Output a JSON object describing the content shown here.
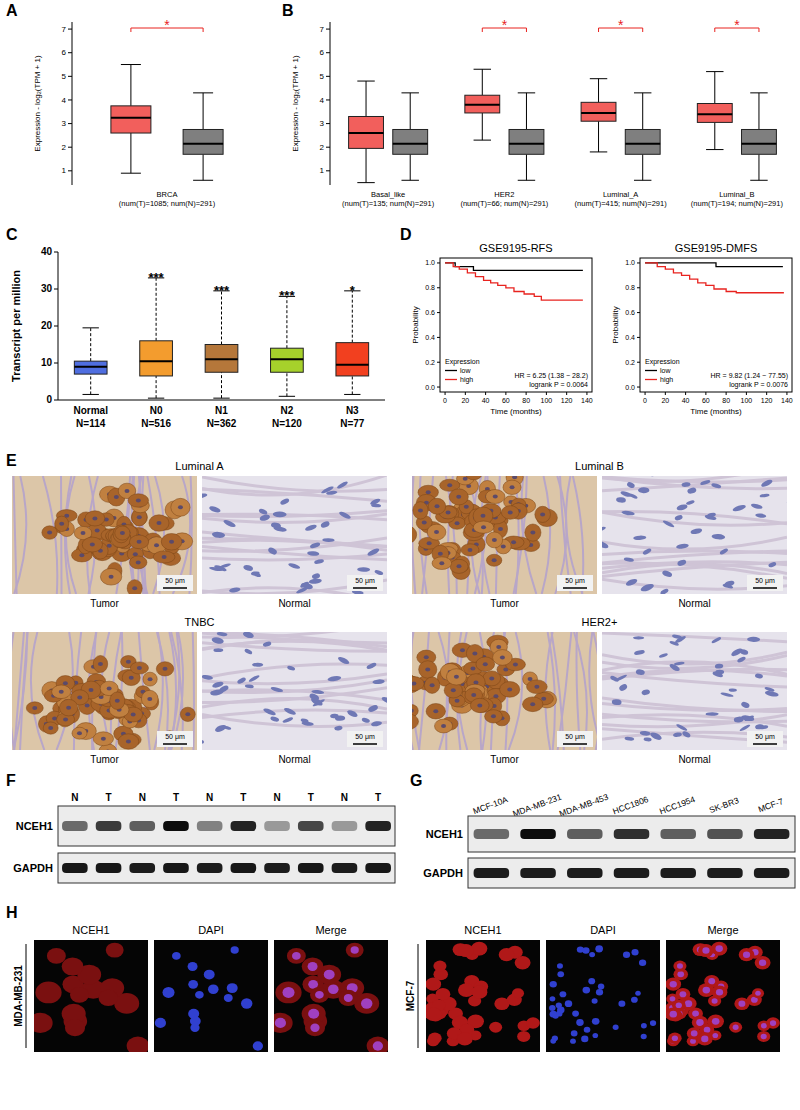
{
  "chart_data": [
    {
      "panel": "A",
      "type": "box",
      "ylabel": "Expression - log₂(TPM + 1)",
      "categories": [
        "BRCA (num(T)=1085; num(N)=291)"
      ],
      "series": [
        {
          "color": "#f25f5c",
          "min": [
            0.9
          ],
          "q1": [
            2.6
          ],
          "median": [
            3.25
          ],
          "q3": [
            3.75
          ],
          "max": [
            5.5
          ]
        },
        {
          "color": "#7f7f7f",
          "min": [
            0.6
          ],
          "q1": [
            1.7
          ],
          "median": [
            2.15
          ],
          "q3": [
            2.75
          ],
          "max": [
            4.3
          ]
        }
      ],
      "annotations": [
        "*"
      ],
      "ylim": [
        0.4,
        7.3
      ],
      "yticks": [
        1,
        2,
        3,
        4,
        5,
        6,
        7
      ]
    },
    {
      "panel": "B",
      "type": "box",
      "ylabel": "Expression - log₂(TPM + 1)",
      "categories": [
        "Basal_like (num(T)=135; num(N)=291)",
        "HER2 (num(T)=66; num(N)=291)",
        "Luminal_A (num(T)=415; num(N)=291)",
        "Luminal_B (num(T)=194; num(N)=291)"
      ],
      "series": [
        {
          "color": "#f25f5c",
          "min": [
            0.5,
            2.3,
            1.8,
            1.9
          ],
          "q1": [
            1.95,
            3.45,
            3.1,
            3.05
          ],
          "median": [
            2.6,
            3.8,
            3.45,
            3.4
          ],
          "q3": [
            3.3,
            4.2,
            3.9,
            3.85
          ],
          "max": [
            4.8,
            5.3,
            4.9,
            5.2
          ]
        },
        {
          "color": "#7f7f7f",
          "min": [
            0.6,
            0.6,
            0.6,
            0.6
          ],
          "q1": [
            1.7,
            1.7,
            1.7,
            1.7
          ],
          "median": [
            2.15,
            2.15,
            2.15,
            2.15
          ],
          "q3": [
            2.75,
            2.75,
            2.75,
            2.75
          ],
          "max": [
            4.3,
            4.3,
            4.3,
            4.3
          ]
        }
      ],
      "annotations": [
        null,
        "*",
        "*",
        "*"
      ],
      "ylim": [
        0.4,
        7.3
      ],
      "yticks": [
        1,
        2,
        3,
        4,
        5,
        6,
        7
      ]
    },
    {
      "panel": "C",
      "type": "box",
      "ylabel": "Transcript per million",
      "categories": [
        "Normal",
        "N0",
        "N1",
        "N2",
        "N3"
      ],
      "n_labels": [
        "N=114",
        "N=516",
        "N=362",
        "N=120",
        "N=77"
      ],
      "colors": [
        "#4f6ee0",
        "#f39c2e",
        "#b5773a",
        "#a6d12b",
        "#f2401f"
      ],
      "series": [
        {
          "min": [
            1.5,
            0.5,
            0.5,
            1,
            1.5
          ],
          "q1": [
            7,
            6.5,
            7.5,
            7.5,
            6.5
          ],
          "median": [
            9,
            10.5,
            11,
            11,
            9.5
          ],
          "q3": [
            10.5,
            16,
            15,
            14,
            15.5
          ],
          "max": [
            19.5,
            33,
            29.5,
            28,
            29.5
          ]
        }
      ],
      "annotations": [
        null,
        "***",
        "***",
        "***",
        "*"
      ],
      "ylim": [
        0,
        40
      ],
      "yticks": [
        0,
        10,
        20,
        30,
        40
      ]
    },
    {
      "panel": "D",
      "type": "line",
      "line_style": "step",
      "title": "GSE9195-RFS",
      "xlabel": "Time (months)",
      "ylabel": "Probability",
      "legend": "lower left",
      "legend_title": "Expression",
      "series": [
        {
          "name": "low",
          "color": "#000000",
          "x": [
            0,
            10,
            28,
            136
          ],
          "values": [
            1,
            0.97,
            0.94,
            0.94
          ]
        },
        {
          "name": "high",
          "color": "#e8231f",
          "x": [
            0,
            8,
            14,
            22,
            30,
            38,
            45,
            52,
            60,
            68,
            78,
            88,
            95,
            136
          ],
          "values": [
            1,
            0.97,
            0.95,
            0.92,
            0.89,
            0.86,
            0.84,
            0.82,
            0.8,
            0.77,
            0.75,
            0.73,
            0.7,
            0.7
          ]
        }
      ],
      "annotations": [
        "HR = 6.25 (1.38 − 28.2)",
        "logrank P = 0.0064"
      ],
      "xlim": [
        -5,
        145
      ],
      "xticks": [
        0,
        20,
        40,
        60,
        80,
        100,
        120,
        140
      ],
      "ylim": [
        -0.04,
        1.04
      ],
      "yticks": [
        {
          "value": 0,
          "label": "0.0"
        },
        {
          "value": 0.2,
          "label": "0.2"
        },
        {
          "value": 0.4,
          "label": "0.4"
        },
        {
          "value": 0.6,
          "label": "0.6"
        },
        {
          "value": 0.8,
          "label": "0.8"
        },
        {
          "value": 1,
          "label": "1.0"
        }
      ]
    },
    {
      "type": "line",
      "line_style": "step",
      "title": "GSE9195-DMFS",
      "xlabel": "Time (months)",
      "ylabel": "Probability",
      "legend": "lower left",
      "legend_title": "Expression",
      "series": [
        {
          "name": "low",
          "color": "#000000",
          "x": [
            0,
            70,
            136
          ],
          "values": [
            1,
            0.97,
            0.97
          ]
        },
        {
          "name": "high",
          "color": "#e8231f",
          "x": [
            0,
            12,
            20,
            28,
            36,
            44,
            52,
            60,
            68,
            80,
            90,
            137
          ],
          "values": [
            1,
            0.97,
            0.95,
            0.92,
            0.9,
            0.87,
            0.84,
            0.82,
            0.79,
            0.77,
            0.76,
            0.76
          ]
        }
      ],
      "annotations": [
        "HR = 9.82 (1.24 − 77.55)",
        "logrank P = 0.0076"
      ],
      "xlim": [
        -5,
        145
      ],
      "xticks": [
        0,
        20,
        40,
        60,
        80,
        100,
        120,
        140
      ],
      "ylim": [
        -0.04,
        1.04
      ],
      "yticks": [
        {
          "value": 0,
          "label": "0.0"
        },
        {
          "value": 0.2,
          "label": "0.2"
        },
        {
          "value": 0.4,
          "label": "0.4"
        },
        {
          "value": 0.6,
          "label": "0.6"
        },
        {
          "value": 0.8,
          "label": "0.8"
        },
        {
          "value": 1,
          "label": "1.0"
        }
      ]
    }
  ],
  "ihc": {
    "panel": "E",
    "groups": [
      {
        "title": "Luminal A",
        "images": [
          "Tumor",
          "Normal"
        ]
      },
      {
        "title": "Luminal B",
        "images": [
          "Tumor",
          "Normal"
        ]
      },
      {
        "title": "TNBC",
        "images": [
          "Tumor",
          "Normal"
        ]
      },
      {
        "title": "HER2+",
        "images": [
          "Tumor",
          "Normal"
        ]
      }
    ],
    "scale_bar": "50 μm"
  },
  "western_blots": [
    {
      "panel": "F",
      "lanes": [
        "N",
        "T",
        "N",
        "T",
        "N",
        "T",
        "N",
        "T",
        "N",
        "T"
      ],
      "rows": [
        {
          "label": "NCEH1",
          "intensity": [
            0.55,
            0.75,
            0.6,
            0.95,
            0.45,
            0.85,
            0.35,
            0.7,
            0.35,
            0.85
          ]
        },
        {
          "label": "GAPDH",
          "intensity": [
            0.9,
            0.9,
            0.88,
            0.9,
            0.88,
            0.9,
            0.88,
            0.9,
            0.88,
            0.9
          ]
        }
      ]
    },
    {
      "panel": "G",
      "lanes": [
        "MCF-10A",
        "MDA-MB-231",
        "MDA-MB-453",
        "HCC1806",
        "HCC1954",
        "SK-BR3",
        "MCF-7"
      ],
      "rows": [
        {
          "label": "NCEH1",
          "intensity": [
            0.55,
            0.95,
            0.6,
            0.8,
            0.6,
            0.65,
            0.85
          ]
        },
        {
          "label": "GAPDH",
          "intensity": [
            0.88,
            0.88,
            0.88,
            0.88,
            0.88,
            0.88,
            0.88
          ]
        }
      ]
    }
  ],
  "immunofluorescence": {
    "panel": "H",
    "channels": [
      "NCEH1",
      "DAPI",
      "Merge"
    ],
    "cell_lines": [
      "MDA-MB-231",
      "MCF-7"
    ]
  }
}
